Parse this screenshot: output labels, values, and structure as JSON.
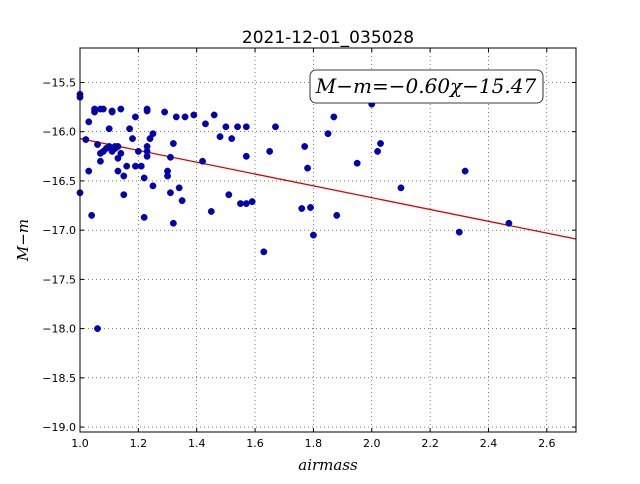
{
  "chart_data": {
    "type": "scatter",
    "title": "2021-12-01_035028",
    "xlabel": "airmass",
    "ylabel": "M−m",
    "xlim": [
      1.0,
      2.7
    ],
    "ylim": [
      -19.05,
      -15.15
    ],
    "xticks": [
      1.0,
      1.2,
      1.4,
      1.6,
      1.8,
      2.0,
      2.2,
      2.4,
      2.6
    ],
    "xtick_labels": [
      "1.0",
      "1.2",
      "1.4",
      "1.6",
      "1.8",
      "2.0",
      "2.2",
      "2.4",
      "2.6"
    ],
    "yticks": [
      -15.5,
      -16.0,
      -16.5,
      -17.0,
      -17.5,
      -18.0,
      -18.5,
      -19.0
    ],
    "ytick_labels": [
      "−15.5",
      "−16.0",
      "−16.5",
      "−17.0",
      "−17.5",
      "−18.0",
      "−18.5",
      "−19.0"
    ],
    "grid": true,
    "annotation": "M−m=−0.60χ−15.47",
    "fit": {
      "slope": -0.6,
      "intercept": -15.47,
      "color": "#dd0000"
    },
    "point_color": "#0000bb",
    "points": [
      [
        1.0,
        -15.62
      ],
      [
        1.0,
        -15.65
      ],
      [
        1.0,
        -16.62
      ],
      [
        1.02,
        -16.08
      ],
      [
        1.03,
        -15.9
      ],
      [
        1.03,
        -16.4
      ],
      [
        1.04,
        -16.85
      ],
      [
        1.05,
        -15.8
      ],
      [
        1.05,
        -15.77
      ],
      [
        1.06,
        -16.13
      ],
      [
        1.06,
        -18.0
      ],
      [
        1.07,
        -15.77
      ],
      [
        1.07,
        -16.22
      ],
      [
        1.07,
        -16.3
      ],
      [
        1.08,
        -16.2
      ],
      [
        1.08,
        -15.77
      ],
      [
        1.09,
        -16.17
      ],
      [
        1.1,
        -16.15
      ],
      [
        1.1,
        -15.97
      ],
      [
        1.11,
        -15.79
      ],
      [
        1.11,
        -15.8
      ],
      [
        1.11,
        -16.2
      ],
      [
        1.12,
        -16.17
      ],
      [
        1.12,
        -16.15
      ],
      [
        1.13,
        -16.15
      ],
      [
        1.13,
        -16.27
      ],
      [
        1.13,
        -16.4
      ],
      [
        1.14,
        -15.77
      ],
      [
        1.14,
        -16.22
      ],
      [
        1.15,
        -16.64
      ],
      [
        1.15,
        -16.45
      ],
      [
        1.16,
        -16.35
      ],
      [
        1.17,
        -15.97
      ],
      [
        1.18,
        -16.07
      ],
      [
        1.19,
        -15.85
      ],
      [
        1.19,
        -16.35
      ],
      [
        1.2,
        -16.2
      ],
      [
        1.21,
        -16.35
      ],
      [
        1.22,
        -16.87
      ],
      [
        1.22,
        -16.47
      ],
      [
        1.23,
        -16.15
      ],
      [
        1.23,
        -16.2
      ],
      [
        1.23,
        -16.25
      ],
      [
        1.23,
        -15.77
      ],
      [
        1.23,
        -15.79
      ],
      [
        1.24,
        -16.07
      ],
      [
        1.25,
        -16.55
      ],
      [
        1.25,
        -16.02
      ],
      [
        1.29,
        -15.8
      ],
      [
        1.3,
        -16.4
      ],
      [
        1.3,
        -16.45
      ],
      [
        1.31,
        -16.26
      ],
      [
        1.31,
        -16.62
      ],
      [
        1.32,
        -16.93
      ],
      [
        1.32,
        -16.12
      ],
      [
        1.33,
        -15.85
      ],
      [
        1.34,
        -16.57
      ],
      [
        1.35,
        -16.7
      ],
      [
        1.36,
        -15.85
      ],
      [
        1.39,
        -15.83
      ],
      [
        1.42,
        -16.3
      ],
      [
        1.43,
        -15.92
      ],
      [
        1.45,
        -16.81
      ],
      [
        1.46,
        -15.83
      ],
      [
        1.48,
        -16.05
      ],
      [
        1.5,
        -15.95
      ],
      [
        1.51,
        -16.64
      ],
      [
        1.52,
        -16.07
      ],
      [
        1.54,
        -15.95
      ],
      [
        1.55,
        -16.73
      ],
      [
        1.57,
        -15.95
      ],
      [
        1.57,
        -16.25
      ],
      [
        1.57,
        -16.73
      ],
      [
        1.59,
        -16.71
      ],
      [
        1.63,
        -17.22
      ],
      [
        1.65,
        -16.2
      ],
      [
        1.67,
        -15.95
      ],
      [
        1.76,
        -16.78
      ],
      [
        1.77,
        -16.15
      ],
      [
        1.78,
        -16.37
      ],
      [
        1.79,
        -16.77
      ],
      [
        1.8,
        -17.05
      ],
      [
        1.85,
        -16.02
      ],
      [
        1.87,
        -15.85
      ],
      [
        1.88,
        -16.85
      ],
      [
        1.95,
        -16.32
      ],
      [
        2.0,
        -15.72
      ],
      [
        2.02,
        -16.2
      ],
      [
        2.03,
        -16.12
      ],
      [
        2.1,
        -16.57
      ],
      [
        2.3,
        -17.02
      ],
      [
        2.32,
        -16.4
      ],
      [
        2.47,
        -16.93
      ]
    ]
  }
}
